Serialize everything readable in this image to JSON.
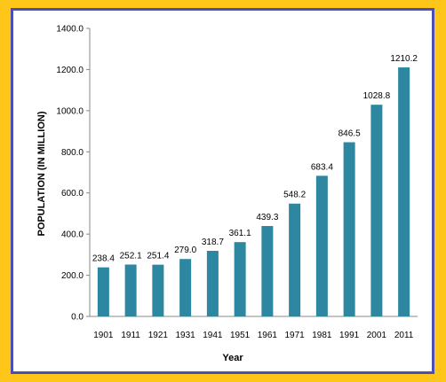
{
  "chart_data": {
    "type": "bar",
    "categories": [
      "1901",
      "1911",
      "1921",
      "1931",
      "1941",
      "1951",
      "1961",
      "1971",
      "1981",
      "1991",
      "2001",
      "2011"
    ],
    "values": [
      238.4,
      252.1,
      251.4,
      279.0,
      318.7,
      361.1,
      439.3,
      548.2,
      683.4,
      846.5,
      1028.8,
      1210.2
    ],
    "value_labels": [
      "238.4",
      "252.1",
      "251.4",
      "279.0",
      "318.7",
      "361.1",
      "439.3",
      "548.2",
      "683.4",
      "846.5",
      "1028.8",
      "1210.2"
    ],
    "title": "",
    "xlabel": "Year",
    "ylabel": "POPULATION (IN MILLION)",
    "ylim": [
      0,
      1400
    ],
    "yticks": [
      0,
      200,
      400,
      600,
      800,
      1000,
      1200,
      1400
    ],
    "ytick_labels": [
      "0.0",
      "200.0",
      "400.0",
      "600.0",
      "800.0",
      "1000.0",
      "1200.0",
      "1400.0"
    ],
    "grid": false,
    "legend": "none",
    "bar_color": "#2e87a1",
    "frame_color": "#4b4fb5",
    "background_color": "#ffc61a"
  }
}
